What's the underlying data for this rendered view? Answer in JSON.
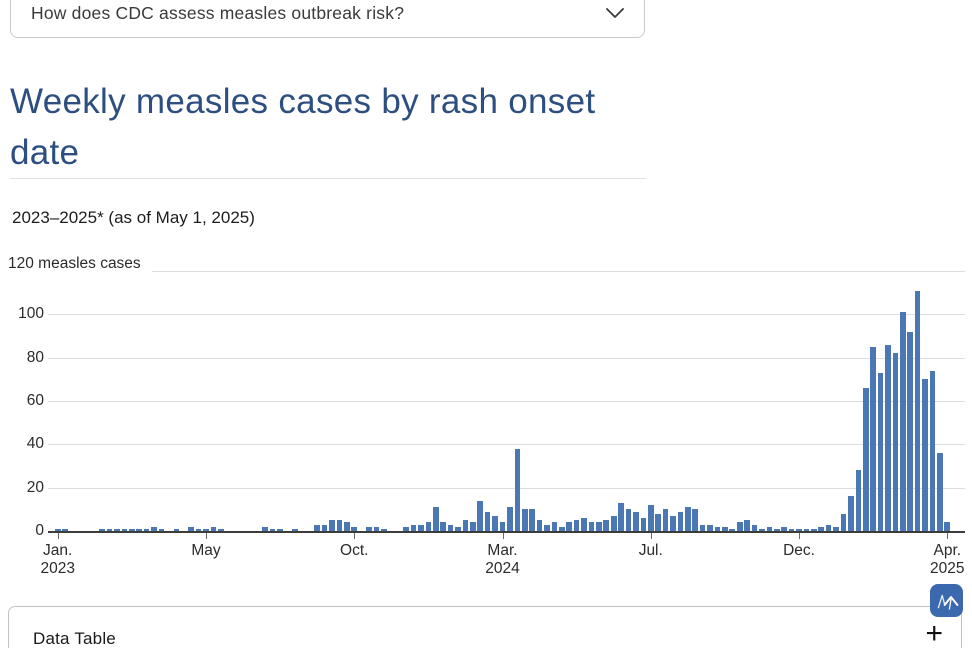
{
  "accordion_top": {
    "question": "How does CDC assess measles outbreak risk?"
  },
  "page": {
    "title": "Weekly measles cases by rash onset date",
    "subtitle": "2023–2025* (as of May 1, 2025)"
  },
  "chart_data": {
    "type": "bar",
    "title": "Weekly measles cases by rash onset date",
    "subtitle": "2023–2025* (as of May 1, 2025)",
    "y_top_label": "120 measles cases",
    "ylabel": "measles cases",
    "ylim": [
      0,
      120
    ],
    "y_ticks": [
      0,
      20,
      40,
      60,
      80,
      100
    ],
    "grid": true,
    "bar_color": "#4c77b5",
    "x_unit": "week of rash onset",
    "x_start": "2023-01-01",
    "x_interval_days": 7,
    "x_tick_labels": [
      {
        "index": 0,
        "lines": [
          "Jan.",
          "2023"
        ]
      },
      {
        "index": 20,
        "lines": [
          "May"
        ]
      },
      {
        "index": 40,
        "lines": [
          "Oct."
        ]
      },
      {
        "index": 60,
        "lines": [
          "Mar.",
          "2024"
        ]
      },
      {
        "index": 80,
        "lines": [
          "Jul."
        ]
      },
      {
        "index": 100,
        "lines": [
          "Dec."
        ]
      },
      {
        "index": 120,
        "lines": [
          "Apr.",
          "2025"
        ]
      }
    ],
    "values": [
      1,
      1,
      0,
      0,
      0,
      0,
      1,
      1,
      1,
      1,
      1,
      1,
      1,
      2,
      1,
      0,
      1,
      0,
      2,
      1,
      1,
      2,
      1,
      0,
      0,
      0,
      0,
      0,
      2,
      1,
      1,
      0,
      1,
      0,
      0,
      3,
      3,
      5,
      5,
      4,
      2,
      0,
      2,
      2,
      1,
      0,
      0,
      2,
      3,
      3,
      4,
      11,
      4,
      3,
      2,
      5,
      4,
      14,
      9,
      7,
      4,
      11,
      38,
      10,
      10,
      5,
      3,
      4,
      2,
      4,
      5,
      6,
      4,
      4,
      5,
      7,
      13,
      10,
      9,
      6,
      12,
      8,
      10,
      7,
      9,
      11,
      10,
      3,
      3,
      2,
      2,
      1,
      4,
      5,
      3,
      1,
      2,
      1,
      2,
      1,
      1,
      1,
      1,
      2,
      3,
      2,
      8,
      16,
      28,
      66,
      85,
      73,
      86,
      82,
      101,
      92,
      111,
      70,
      74,
      36,
      4
    ]
  },
  "data_table": {
    "label": "Data Table",
    "expand_icon": "+"
  },
  "colors": {
    "accent_blue": "#3c69ae",
    "title_blue": "#2d4e80",
    "bar_blue": "#4c77b5"
  }
}
